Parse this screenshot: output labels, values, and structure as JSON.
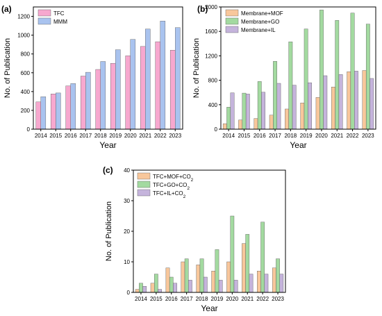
{
  "chart_data": [
    {
      "panel_label": "(a)",
      "type": "bar",
      "categories": [
        "2014",
        "2015",
        "2016",
        "2017",
        "2018",
        "2019",
        "2020",
        "2021",
        "2022",
        "2023"
      ],
      "series": [
        {
          "name": "TFC",
          "color": "#f7a8cf",
          "values": [
            290,
            375,
            460,
            565,
            635,
            700,
            780,
            880,
            930,
            840
          ]
        },
        {
          "name": "MMM",
          "color": "#a9c3ef",
          "values": [
            345,
            385,
            485,
            605,
            720,
            845,
            955,
            1065,
            1150,
            1080
          ]
        }
      ],
      "xlabel": "Year",
      "ylabel": "No. of Publication",
      "ylim": [
        0,
        1300
      ],
      "yticks": [
        0,
        200,
        400,
        600,
        800,
        1000,
        1200
      ],
      "legend": "top-left"
    },
    {
      "panel_label": "(b)",
      "type": "bar",
      "categories": [
        "2014",
        "2015",
        "2016",
        "2017",
        "2018",
        "2019",
        "2020",
        "2021",
        "2022",
        "2023"
      ],
      "series": [
        {
          "name": "Membrane+MOF",
          "color": "#f8c79b",
          "values": [
            90,
            150,
            175,
            230,
            330,
            430,
            520,
            690,
            940,
            960
          ]
        },
        {
          "name": "Membrane+GO",
          "color": "#a3daa0",
          "values": [
            360,
            590,
            780,
            1110,
            1430,
            1640,
            1950,
            1780,
            1900,
            1720
          ]
        },
        {
          "name": "Membrane+IL",
          "color": "#c5b4dc",
          "values": [
            595,
            575,
            605,
            750,
            720,
            760,
            875,
            895,
            950,
            830
          ]
        }
      ],
      "xlabel": "Year",
      "ylabel": "No. of Publication",
      "ylim": [
        0,
        2000
      ],
      "yticks": [
        0,
        400,
        800,
        1200,
        1600,
        2000
      ],
      "legend": "top-left"
    },
    {
      "panel_label": "(c)",
      "type": "bar",
      "categories": [
        "2014",
        "2015",
        "2016",
        "2017",
        "2018",
        "2019",
        "2020",
        "2021",
        "2022",
        "2023"
      ],
      "series": [
        {
          "name": "TFC+MOF+CO2",
          "color": "#f8c79b",
          "values": [
            1,
            3,
            8,
            10,
            9,
            7,
            10,
            16,
            7,
            8
          ]
        },
        {
          "name": "TFC+GO+CO2",
          "color": "#a3daa0",
          "values": [
            3,
            6,
            5,
            11,
            11,
            14,
            25,
            19,
            23,
            11
          ]
        },
        {
          "name": "TFC+IL+CO2",
          "color": "#c5b4dc",
          "values": [
            2,
            1,
            3,
            4,
            5,
            4,
            4,
            6,
            6,
            6
          ]
        }
      ],
      "xlabel": "Year",
      "ylabel": "No. of Publication",
      "ylim": [
        0,
        40
      ],
      "yticks": [
        0,
        10,
        20,
        30,
        40
      ],
      "legend": "top-left"
    }
  ]
}
